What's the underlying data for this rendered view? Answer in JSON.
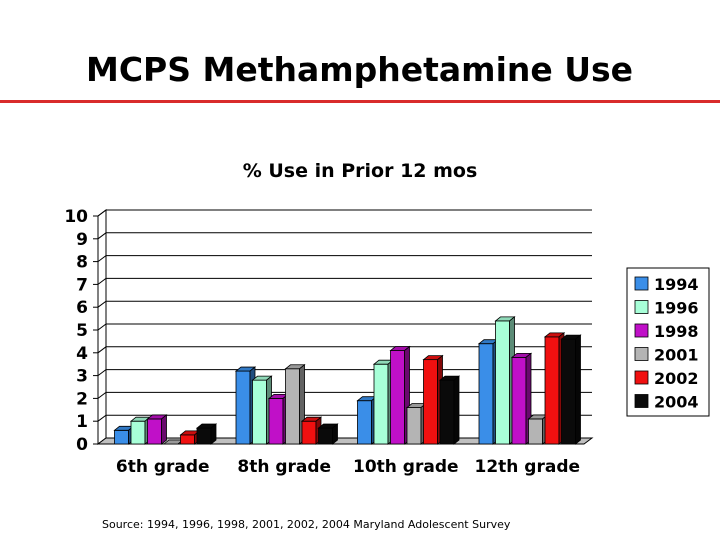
{
  "slide": {
    "title": "MCPS Methamphetamine Use",
    "rule_color": "#d92b2b",
    "source": "Source: 1994, 1996, 1998, 2001, 2002, 2004 Maryland Adolescent Survey"
  },
  "chart_data": {
    "type": "bar",
    "style": "3d-clustered-column",
    "title": "% Use in Prior 12 mos",
    "xlabel": "",
    "ylabel": "",
    "categories": [
      "6th grade",
      "8th grade",
      "10th grade",
      "12th grade"
    ],
    "ylim": [
      0,
      10
    ],
    "yticks": [
      0,
      1,
      2,
      3,
      4,
      5,
      6,
      7,
      8,
      9,
      10
    ],
    "grid": true,
    "legend_position": "right",
    "series": [
      {
        "name": "1994",
        "color": "#3a8ee8",
        "values": [
          0.6,
          3.2,
          1.9,
          4.4
        ]
      },
      {
        "name": "1996",
        "color": "#a8ffd8",
        "values": [
          1.0,
          2.8,
          3.5,
          5.4
        ]
      },
      {
        "name": "1998",
        "color": "#c010c8",
        "values": [
          1.1,
          2.0,
          4.1,
          3.8
        ]
      },
      {
        "name": "2001",
        "color": "#b4b4b4",
        "values": [
          0.0,
          3.3,
          1.6,
          1.1
        ]
      },
      {
        "name": "2002",
        "color": "#f01010",
        "values": [
          0.4,
          1.0,
          3.7,
          4.7
        ]
      },
      {
        "name": "2004",
        "color": "#0a0a0a",
        "values": [
          0.7,
          0.7,
          2.8,
          4.6
        ]
      }
    ]
  }
}
